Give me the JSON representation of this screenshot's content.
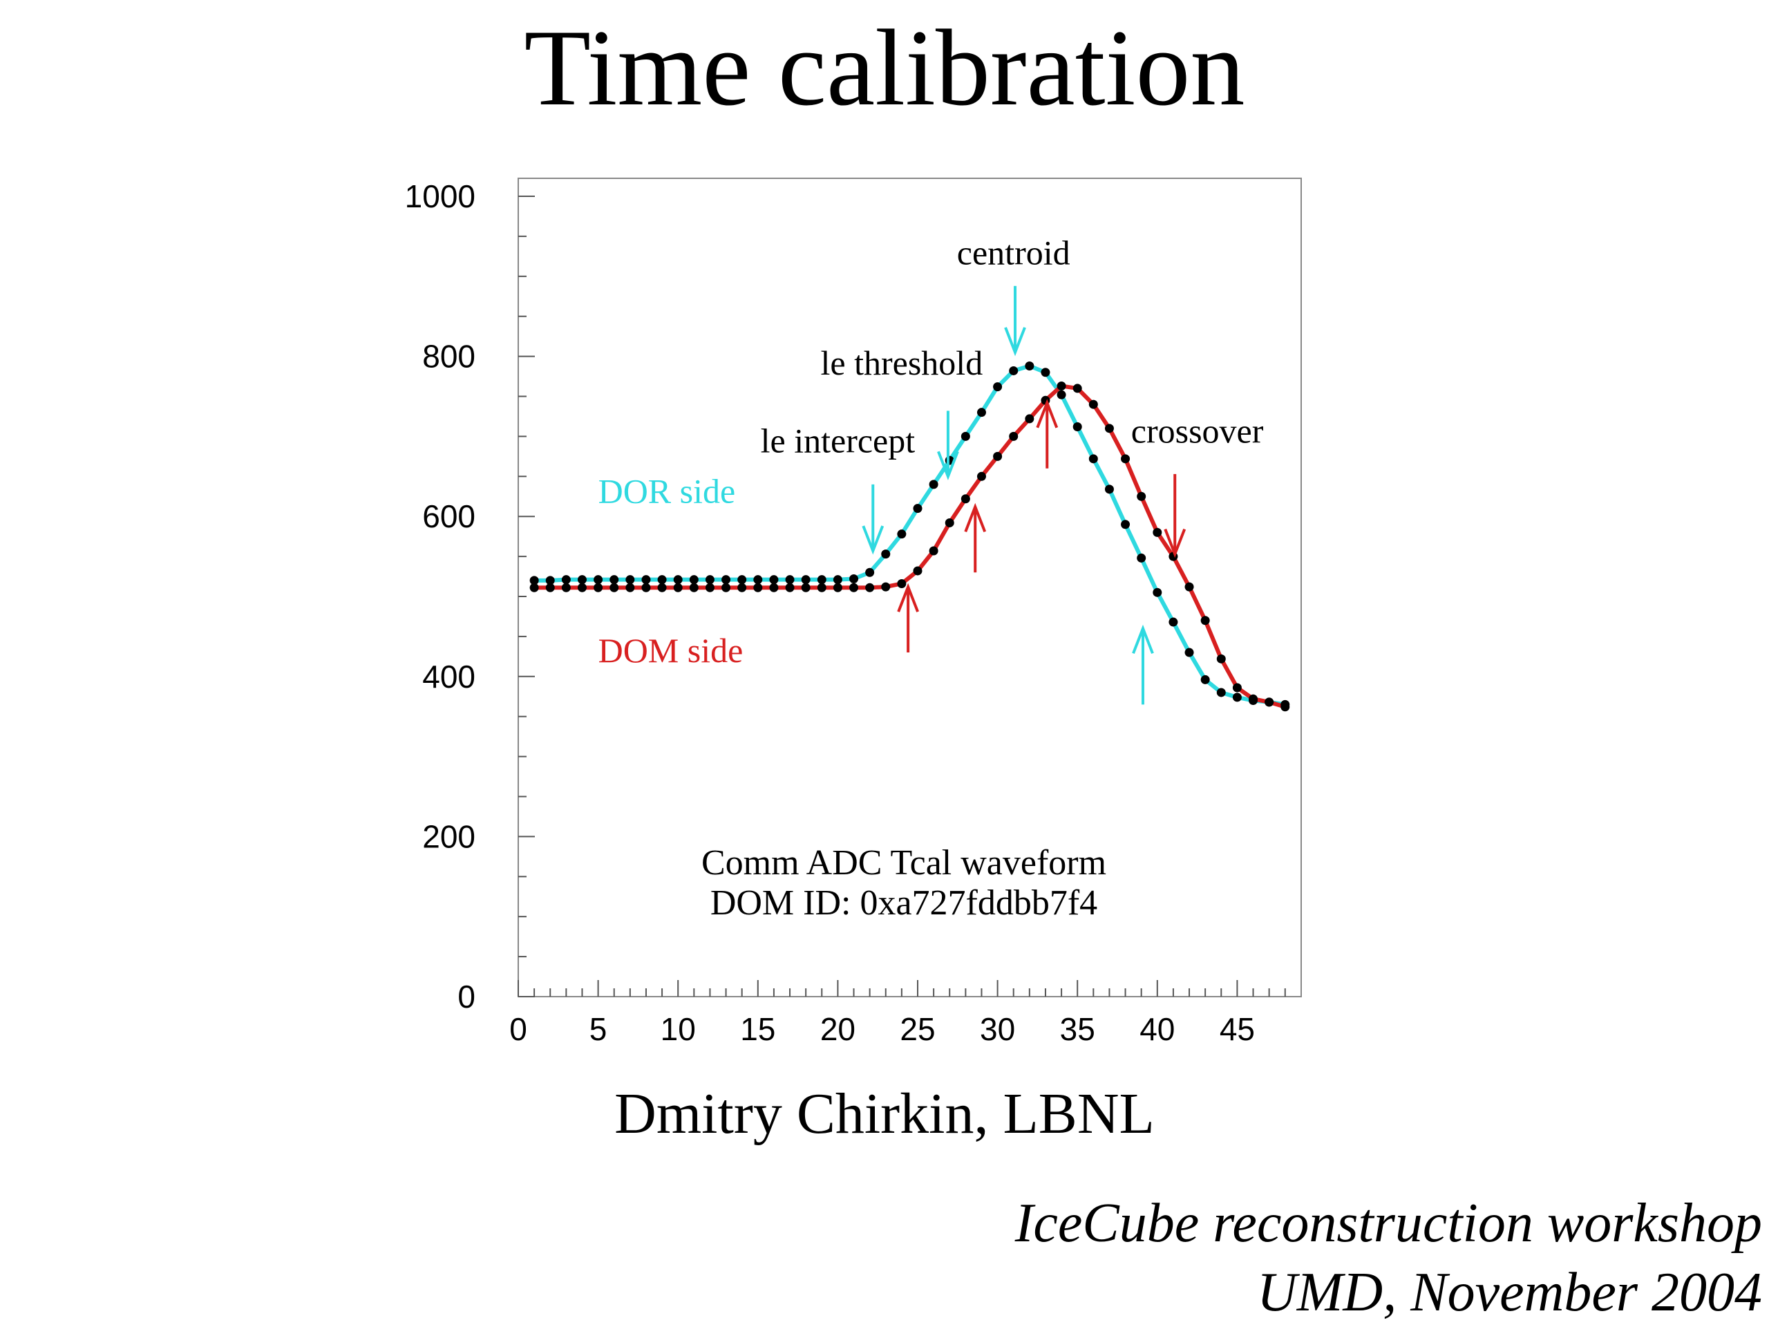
{
  "slide": {
    "title": "Time calibration",
    "author": "Dmitry Chirkin, LBNL",
    "footer_line1": "IceCube reconstruction workshop",
    "footer_line2": "UMD, November 2004"
  },
  "chart_data": {
    "type": "line",
    "xlim": [
      0,
      49
    ],
    "ylim": [
      0,
      1000
    ],
    "xticks": [
      0,
      5,
      10,
      15,
      20,
      25,
      30,
      35,
      40,
      45
    ],
    "yticks": [
      0,
      200,
      400,
      600,
      800,
      1000
    ],
    "grid": false,
    "caption": [
      "Comm ADC Tcal waveform",
      "DOM ID: 0xa727fddbb7f4"
    ],
    "series": [
      {
        "name": "DOR side",
        "color": "#2fd9e0",
        "x": [
          1,
          2,
          3,
          4,
          5,
          6,
          7,
          8,
          9,
          10,
          11,
          12,
          13,
          14,
          15,
          16,
          17,
          18,
          19,
          20,
          21,
          22,
          23,
          24,
          25,
          26,
          27,
          28,
          29,
          30,
          31,
          32,
          33,
          34,
          35,
          36,
          37,
          38,
          39,
          40,
          41,
          42,
          43,
          44,
          45,
          46,
          47,
          48
        ],
        "y": [
          520,
          520,
          521,
          521,
          521,
          521,
          521,
          521,
          521,
          521,
          521,
          521,
          521,
          521,
          521,
          521,
          521,
          521,
          521,
          521,
          522,
          530,
          553,
          578,
          610,
          640,
          670,
          700,
          730,
          762,
          782,
          788,
          780,
          752,
          712,
          672,
          634,
          590,
          548,
          505,
          468,
          430,
          396,
          380,
          374,
          370,
          368,
          365
        ]
      },
      {
        "name": "DOM side",
        "color": "#d82020",
        "x": [
          1,
          2,
          3,
          4,
          5,
          6,
          7,
          8,
          9,
          10,
          11,
          12,
          13,
          14,
          15,
          16,
          17,
          18,
          19,
          20,
          21,
          22,
          23,
          24,
          25,
          26,
          27,
          28,
          29,
          30,
          31,
          32,
          33,
          34,
          35,
          36,
          37,
          38,
          39,
          40,
          41,
          42,
          43,
          44,
          45,
          46,
          47,
          48
        ],
        "y": [
          511,
          511,
          511,
          511,
          511,
          511,
          511,
          511,
          511,
          511,
          511,
          511,
          511,
          511,
          511,
          511,
          511,
          511,
          511,
          511,
          511,
          511,
          512,
          516,
          532,
          557,
          592,
          622,
          650,
          675,
          700,
          722,
          745,
          763,
          760,
          740,
          710,
          672,
          625,
          580,
          550,
          512,
          470,
          422,
          386,
          372,
          368,
          362
        ]
      }
    ],
    "series_labels": [
      {
        "text": "DOR side",
        "series": 0,
        "x": 5,
        "y": 617
      },
      {
        "text": "DOM side",
        "series": 1,
        "x": 5,
        "y": 418
      }
    ],
    "annotations": [
      {
        "text": "centroid",
        "x": 31,
        "y": 915
      },
      {
        "text": "le threshold",
        "x": 24,
        "y": 777
      },
      {
        "text": "le intercept",
        "x": 20,
        "y": 680
      },
      {
        "text": "crossover",
        "x": 42.5,
        "y": 692
      }
    ],
    "arrows": [
      {
        "series": 0,
        "direction": "down",
        "x": 22.2,
        "from": 640,
        "to": 557
      },
      {
        "series": 0,
        "direction": "down",
        "x": 26.9,
        "from": 732,
        "to": 650
      },
      {
        "series": 0,
        "direction": "down",
        "x": 31.1,
        "from": 888,
        "to": 805
      },
      {
        "series": 0,
        "direction": "up",
        "x": 39.1,
        "from": 365,
        "to": 460
      },
      {
        "series": 1,
        "direction": "up",
        "x": 24.4,
        "from": 430,
        "to": 512
      },
      {
        "series": 1,
        "direction": "up",
        "x": 28.6,
        "from": 530,
        "to": 612
      },
      {
        "series": 1,
        "direction": "up",
        "x": 33.1,
        "from": 660,
        "to": 742
      },
      {
        "series": 1,
        "direction": "down",
        "x": 41.1,
        "from": 653,
        "to": 553
      }
    ]
  }
}
